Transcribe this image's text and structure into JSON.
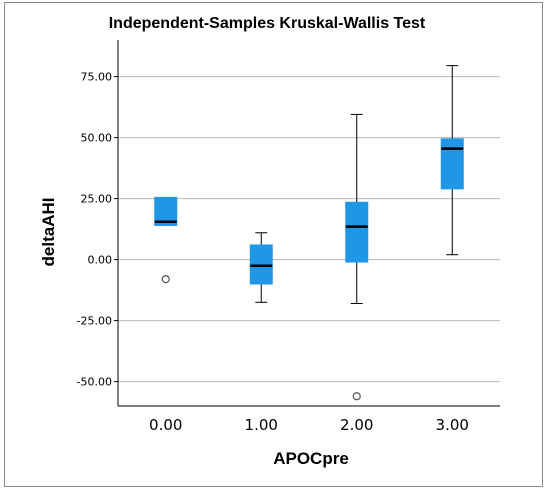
{
  "chart_data": {
    "type": "box",
    "title": "Independent-Samples Kruskal-Wallis Test",
    "xlabel": "APOCpre",
    "ylabel": "deltaAHI",
    "categories": [
      "0.00",
      "1.00",
      "2.00",
      "3.00"
    ],
    "yticks": [
      "-50.00",
      "-25.00",
      "0.00",
      "25.00",
      "50.00",
      "75.00"
    ],
    "ylim": [
      -60,
      90
    ],
    "grid": true,
    "box_color": "#1f97e6",
    "boxes": [
      {
        "category": "0.00",
        "whisker_low": 14,
        "q1": 14,
        "median": 15.5,
        "q3": 25.5,
        "whisker_high": 25.5,
        "outliers": [
          -8
        ]
      },
      {
        "category": "1.00",
        "whisker_low": -17.5,
        "q1": -10,
        "median": -2.5,
        "q3": 6,
        "whisker_high": 11,
        "outliers": []
      },
      {
        "category": "2.00",
        "whisker_low": -18,
        "q1": -1,
        "median": 13.5,
        "q3": 23.5,
        "whisker_high": 59.5,
        "outliers": [
          -56
        ]
      },
      {
        "category": "3.00",
        "whisker_low": 2,
        "q1": 29,
        "median": 45.5,
        "q3": 49.5,
        "whisker_high": 79.5,
        "outliers": []
      }
    ]
  }
}
